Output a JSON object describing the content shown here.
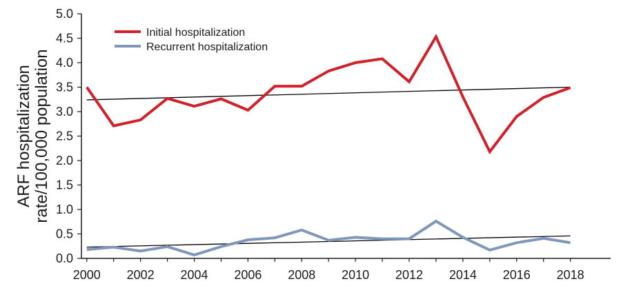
{
  "chart_data": {
    "type": "line",
    "title": "",
    "ylabel_lines": [
      "ARF hospitalization",
      "rate/100,000 population"
    ],
    "xlabel": "",
    "x": [
      2000,
      2001,
      2002,
      2003,
      2004,
      2005,
      2006,
      2007,
      2008,
      2009,
      2010,
      2011,
      2012,
      2013,
      2014,
      2015,
      2016,
      2017,
      2018
    ],
    "xlim": [
      1999.8,
      2019.5
    ],
    "x_ticks": [
      2000,
      2002,
      2004,
      2006,
      2008,
      2010,
      2012,
      2014,
      2016,
      2018
    ],
    "ylim": [
      0,
      5.0
    ],
    "y_ticks": [
      "0.0",
      "0.5",
      "1.0",
      "1.5",
      "2.0",
      "2.5",
      "3.0",
      "3.5",
      "4.0",
      "4.5",
      "5.0"
    ],
    "grid": false,
    "legend_position": "top-left",
    "series": [
      {
        "name": "Initial hospitalization",
        "color": "#d0202a",
        "values": [
          3.5,
          2.71,
          2.83,
          3.27,
          3.11,
          3.26,
          3.03,
          3.52,
          3.52,
          3.83,
          4.0,
          4.08,
          3.61,
          4.53,
          3.3,
          2.18,
          2.9,
          3.29,
          3.49
        ]
      },
      {
        "name": "Recurrent hospitalization",
        "color": "#7f98b9",
        "values": [
          0.18,
          0.23,
          0.15,
          0.24,
          0.07,
          0.24,
          0.38,
          0.42,
          0.58,
          0.37,
          0.43,
          0.4,
          0.4,
          0.76,
          0.43,
          0.17,
          0.32,
          0.41,
          0.32
        ]
      }
    ],
    "trendlines": [
      {
        "of": "Initial hospitalization",
        "color": "#000000",
        "x": [
          2000,
          2018
        ],
        "y": [
          3.24,
          3.5
        ]
      },
      {
        "of": "Recurrent hospitalization",
        "color": "#000000",
        "x": [
          2000,
          2018
        ],
        "y": [
          0.23,
          0.46
        ]
      }
    ]
  }
}
